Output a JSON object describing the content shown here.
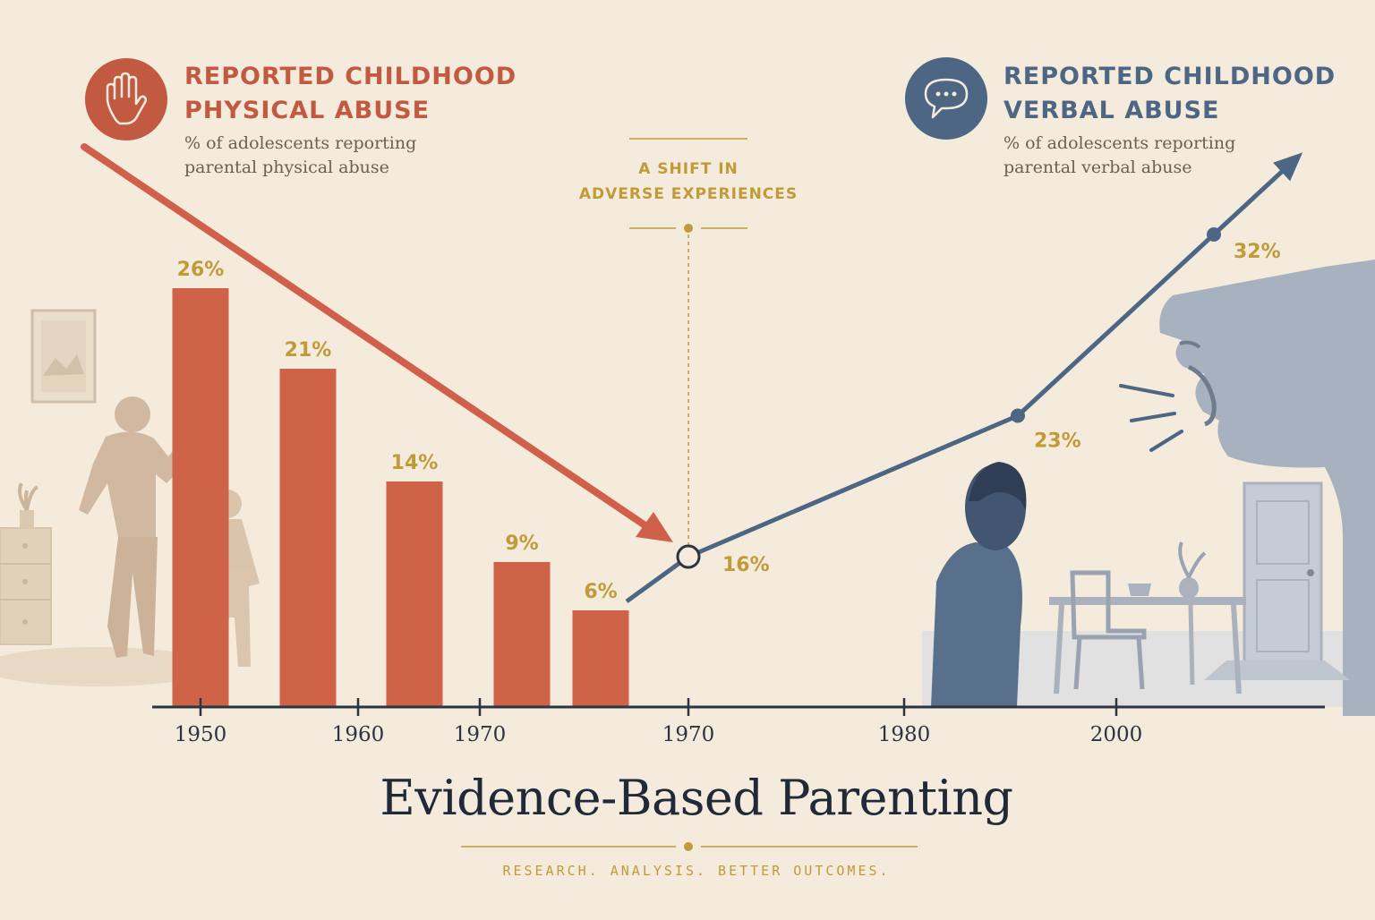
{
  "colors": {
    "background": "#f4ebdc",
    "physical": "#cf6347",
    "physical_dark": "#c25a42",
    "verbal": "#4c6683",
    "gold": "#c19a3a",
    "text_dark": "#1f2937"
  },
  "legend_physical": {
    "icon": "raised-hand-icon",
    "title_line1": "REPORTED CHILDHOOD",
    "title_line2": "PHYSICAL ABUSE",
    "sub_line1": "% of adolescents reporting",
    "sub_line2": "parental physical abuse"
  },
  "legend_verbal": {
    "icon": "speech-bubble-icon",
    "title_line1": "REPORTED CHILDHOOD",
    "title_line2": "VERBAL ABUSE",
    "sub_line1": "% of adolescents reporting",
    "sub_line2": "parental verbal abuse"
  },
  "annotation": {
    "line1": "A SHIFT IN",
    "line2": "ADVERSE EXPERIENCES"
  },
  "footer": {
    "title": "Evidence-Based Parenting",
    "tagline": "RESEARCH. ANALYSIS. BETTER OUTCOMES."
  },
  "chart_data": [
    {
      "type": "bar",
      "series": [
        {
          "name": "REPORTED CHILDHOOD PHYSICAL ABUSE",
          "values": [
            26,
            21,
            14,
            9,
            6
          ],
          "labels": [
            "26%",
            "21%",
            "14%",
            "9%",
            "6%"
          ]
        }
      ],
      "trend": "downward arrow"
    },
    {
      "type": "line",
      "series": [
        {
          "name": "REPORTED CHILDHOOD VERBAL ABUSE",
          "values": [
            16,
            23,
            32
          ],
          "labels": [
            "16%",
            "23%",
            "32%"
          ]
        }
      ],
      "trend": "upward arrow"
    }
  ],
  "x_axis": {
    "tick_labels": [
      "1950",
      "1960",
      "1970",
      "1970",
      "1980",
      "2000"
    ]
  }
}
